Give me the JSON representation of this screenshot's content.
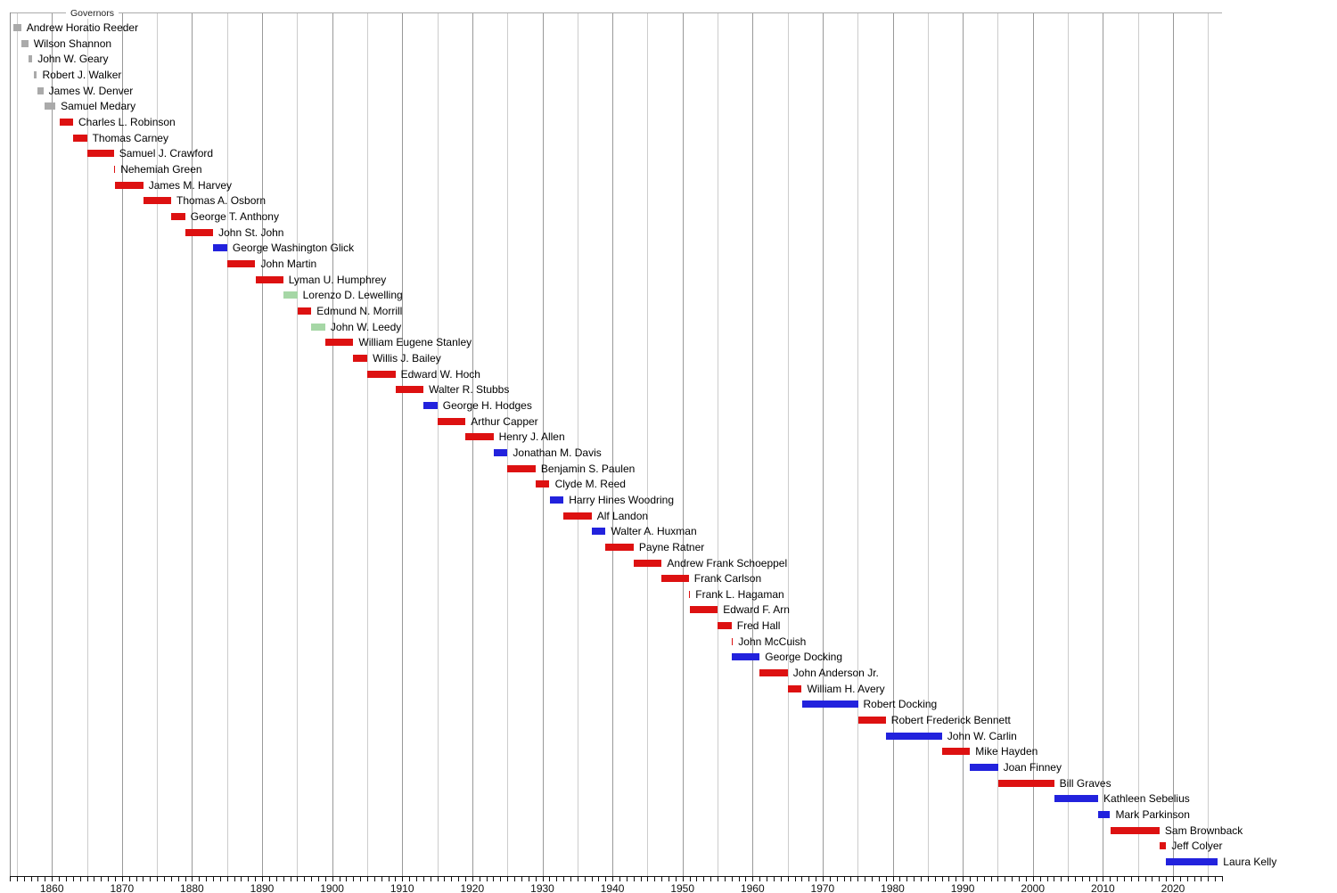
{
  "chart_data": {
    "type": "bar",
    "variant": "gantt-timeline",
    "title": "Governors",
    "orientation": "horizontal",
    "grid": "on",
    "legend": "none",
    "x_axis": {
      "unit": "year",
      "range": [
        1854,
        2027
      ],
      "gridline_interval_years": 5,
      "minor_tick_interval_years": 1,
      "tick_label_years": [
        1860,
        1870,
        1880,
        1890,
        1900,
        1910,
        1920,
        1930,
        1940,
        1950,
        1960,
        1970,
        1980,
        1990,
        2000,
        2010,
        2020
      ]
    },
    "party_colors": {
      "territorial": "#aaaaaa",
      "republican": "#dd1111",
      "democratic": "#2222dd",
      "populist": "#a6d7a6"
    },
    "style_colors": {
      "grid_major": "#999999",
      "grid_minor": "#cccccc",
      "frame_top": "#aaaaaa",
      "frame_left": "#888888",
      "axis": "#111111",
      "text": "#000000"
    },
    "governors": [
      {
        "name": "Andrew Horatio Reeder",
        "party": "territorial",
        "from": 1854.5,
        "till": 1855.62
      },
      {
        "name": "Wilson Shannon",
        "party": "territorial",
        "from": 1855.68,
        "till": 1856.63
      },
      {
        "name": "John W. Geary",
        "party": "territorial",
        "from": 1856.69,
        "till": 1857.2
      },
      {
        "name": "Robert J. Walker",
        "party": "territorial",
        "from": 1857.4,
        "till": 1857.88
      },
      {
        "name": "James W. Denver",
        "party": "territorial",
        "from": 1857.97,
        "till": 1858.78
      },
      {
        "name": "Samuel Medary",
        "party": "territorial",
        "from": 1858.96,
        "till": 1860.5
      },
      {
        "name": "Charles L. Robinson",
        "party": "republican",
        "from": 1861.11,
        "till": 1863.03
      },
      {
        "name": "Thomas Carney",
        "party": "republican",
        "from": 1863.03,
        "till": 1865.02
      },
      {
        "name": "Samuel J. Crawford",
        "party": "republican",
        "from": 1865.02,
        "till": 1868.84
      },
      {
        "name": "Nehemiah Green",
        "party": "republican",
        "from": 1868.84,
        "till": 1869.03
      },
      {
        "name": "James M. Harvey",
        "party": "republican",
        "from": 1869.03,
        "till": 1873.04
      },
      {
        "name": "Thomas A. Osborn",
        "party": "republican",
        "from": 1873.04,
        "till": 1877.02
      },
      {
        "name": "George T. Anthony",
        "party": "republican",
        "from": 1877.02,
        "till": 1879.04
      },
      {
        "name": "John St. John",
        "party": "republican",
        "from": 1879.04,
        "till": 1883.02
      },
      {
        "name": "George Washington Glick",
        "party": "democratic",
        "from": 1883.02,
        "till": 1885.03
      },
      {
        "name": "John Martin",
        "party": "republican",
        "from": 1885.03,
        "till": 1889.04
      },
      {
        "name": "Lyman U. Humphrey",
        "party": "republican",
        "from": 1889.04,
        "till": 1893.02
      },
      {
        "name": "Lorenzo D. Lewelling",
        "party": "populist",
        "from": 1893.02,
        "till": 1895.04
      },
      {
        "name": "Edmund N. Morrill",
        "party": "republican",
        "from": 1895.04,
        "till": 1897.03
      },
      {
        "name": "John W. Leedy",
        "party": "populist",
        "from": 1897.03,
        "till": 1899.02
      },
      {
        "name": "William Eugene Stanley",
        "party": "republican",
        "from": 1899.02,
        "till": 1903.03
      },
      {
        "name": "Willis J. Bailey",
        "party": "republican",
        "from": 1903.03,
        "till": 1905.02
      },
      {
        "name": "Edward W. Hoch",
        "party": "republican",
        "from": 1905.02,
        "till": 1909.03
      },
      {
        "name": "Walter R. Stubbs",
        "party": "republican",
        "from": 1909.03,
        "till": 1913.04
      },
      {
        "name": "George H. Hodges",
        "party": "democratic",
        "from": 1913.04,
        "till": 1915.03
      },
      {
        "name": "Arthur Capper",
        "party": "republican",
        "from": 1915.03,
        "till": 1919.04
      },
      {
        "name": "Henry J. Allen",
        "party": "republican",
        "from": 1919.04,
        "till": 1923.02
      },
      {
        "name": "Jonathan M. Davis",
        "party": "democratic",
        "from": 1923.02,
        "till": 1925.03
      },
      {
        "name": "Benjamin S. Paulen",
        "party": "republican",
        "from": 1925.03,
        "till": 1929.04
      },
      {
        "name": "Clyde M. Reed",
        "party": "republican",
        "from": 1929.04,
        "till": 1931.03
      },
      {
        "name": "Harry Hines Woodring",
        "party": "democratic",
        "from": 1931.03,
        "till": 1933.02
      },
      {
        "name": "Alf Landon",
        "party": "republican",
        "from": 1933.02,
        "till": 1937.03
      },
      {
        "name": "Walter A. Huxman",
        "party": "democratic",
        "from": 1937.03,
        "till": 1939.02
      },
      {
        "name": "Payne Ratner",
        "party": "republican",
        "from": 1939.02,
        "till": 1943.03
      },
      {
        "name": "Andrew Frank Schoeppel",
        "party": "republican",
        "from": 1943.03,
        "till": 1947.04
      },
      {
        "name": "Frank Carlson",
        "party": "republican",
        "from": 1947.04,
        "till": 1950.91
      },
      {
        "name": "Frank L. Hagaman",
        "party": "republican",
        "from": 1950.91,
        "till": 1951.02
      },
      {
        "name": "Edward F. Arn",
        "party": "republican",
        "from": 1951.02,
        "till": 1955.03
      },
      {
        "name": "Fred Hall",
        "party": "republican",
        "from": 1955.03,
        "till": 1957.01
      },
      {
        "name": "John McCuish",
        "party": "republican",
        "from": 1957.01,
        "till": 1957.04
      },
      {
        "name": "George Docking",
        "party": "democratic",
        "from": 1957.04,
        "till": 1961.02
      },
      {
        "name": "John Anderson Jr.",
        "party": "republican",
        "from": 1961.02,
        "till": 1965.03
      },
      {
        "name": "William H. Avery",
        "party": "republican",
        "from": 1965.03,
        "till": 1967.02
      },
      {
        "name": "Robert Docking",
        "party": "democratic",
        "from": 1967.02,
        "till": 1975.04
      },
      {
        "name": "Robert Frederick Bennett",
        "party": "republican",
        "from": 1975.04,
        "till": 1979.02
      },
      {
        "name": "John W. Carlin",
        "party": "democratic",
        "from": 1979.02,
        "till": 1987.03
      },
      {
        "name": "Mike Hayden",
        "party": "republican",
        "from": 1987.03,
        "till": 1991.04
      },
      {
        "name": "Joan Finney",
        "party": "democratic",
        "from": 1991.04,
        "till": 1995.02
      },
      {
        "name": "Bill Graves",
        "party": "republican",
        "from": 1995.02,
        "till": 2003.04
      },
      {
        "name": "Kathleen Sebelius",
        "party": "democratic",
        "from": 2003.04,
        "till": 2009.32
      },
      {
        "name": "Mark Parkinson",
        "party": "democratic",
        "from": 2009.32,
        "till": 2011.03
      },
      {
        "name": "Sam Brownback",
        "party": "republican",
        "from": 2011.03,
        "till": 2018.08
      },
      {
        "name": "Jeff Colyer",
        "party": "republican",
        "from": 2018.08,
        "till": 2019.04
      },
      {
        "name": "Laura Kelly",
        "party": "democratic",
        "from": 2019.04,
        "till": 2026.4
      }
    ]
  }
}
